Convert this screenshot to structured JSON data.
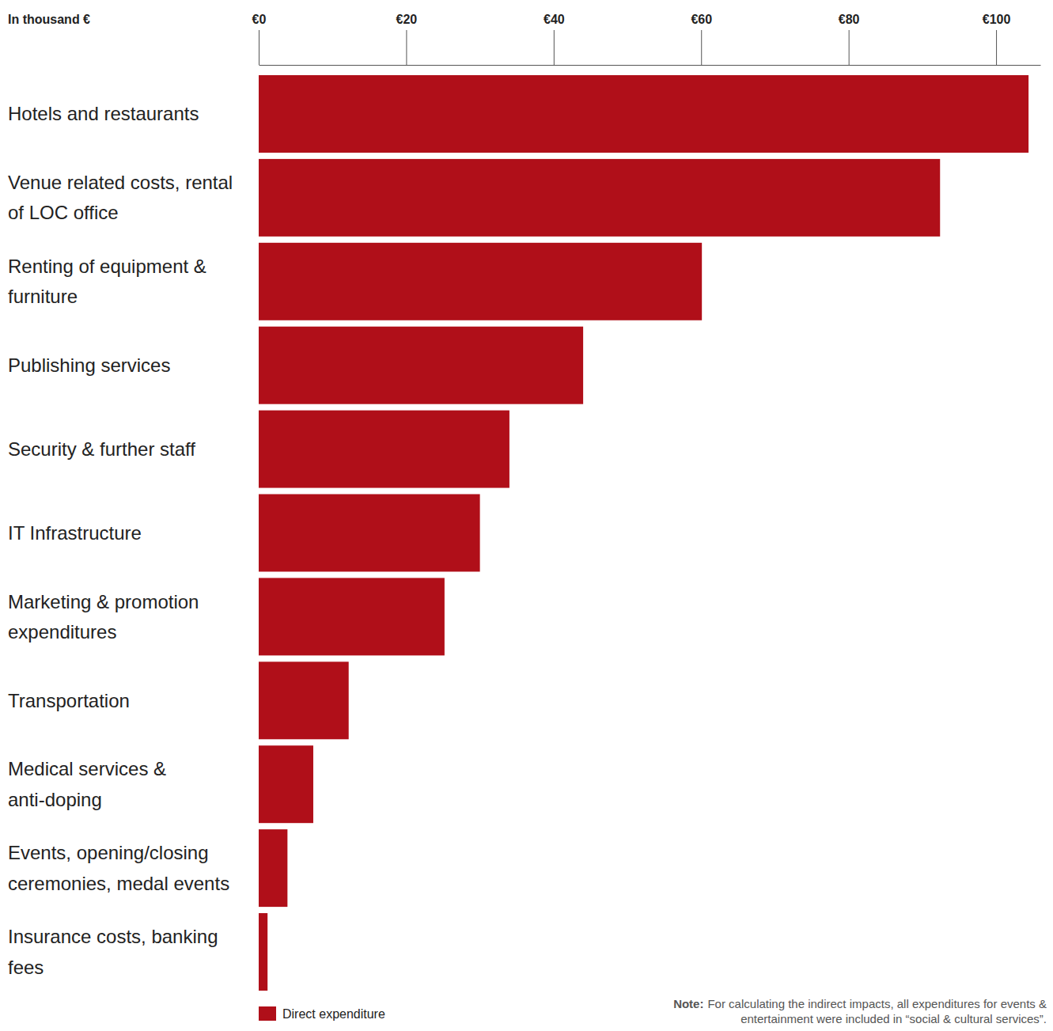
{
  "chart_data": {
    "type": "bar",
    "orientation": "horizontal",
    "xlabel": "In thousand €",
    "categories": [
      "Hotels and restaurants",
      "Venue related costs, rental of LOC office",
      "Renting of equipment & furniture",
      "Publishing services",
      "Security & further staff",
      "IT Infrastructure",
      "Marketing & promotion expenditures",
      "Transportation",
      "Medical services & anti-doping",
      "Events, opening/closing ceremonies, medal events",
      "Insurance costs, banking fees"
    ],
    "series": [
      {
        "name": "Direct expenditure",
        "color": "#b00f19",
        "values": [
          104.4,
          92.4,
          60.1,
          44.0,
          34.0,
          30.0,
          25.2,
          12.2,
          7.4,
          3.9,
          1.2
        ]
      }
    ],
    "xlim": [
      0,
      106
    ],
    "xticks": [
      {
        "value": 0,
        "label": "€0"
      },
      {
        "value": 20,
        "label": "€20"
      },
      {
        "value": 40,
        "label": "€40"
      },
      {
        "value": 60,
        "label": "€60"
      },
      {
        "value": 80,
        "label": "€80"
      },
      {
        "value": 100,
        "label": "€100"
      }
    ],
    "grid": false,
    "legend": "bottom-left",
    "note_label": "Note:",
    "note": "For calculating the indirect impacts, all expenditures for events & entertainment were included in “social & cultural services”."
  }
}
